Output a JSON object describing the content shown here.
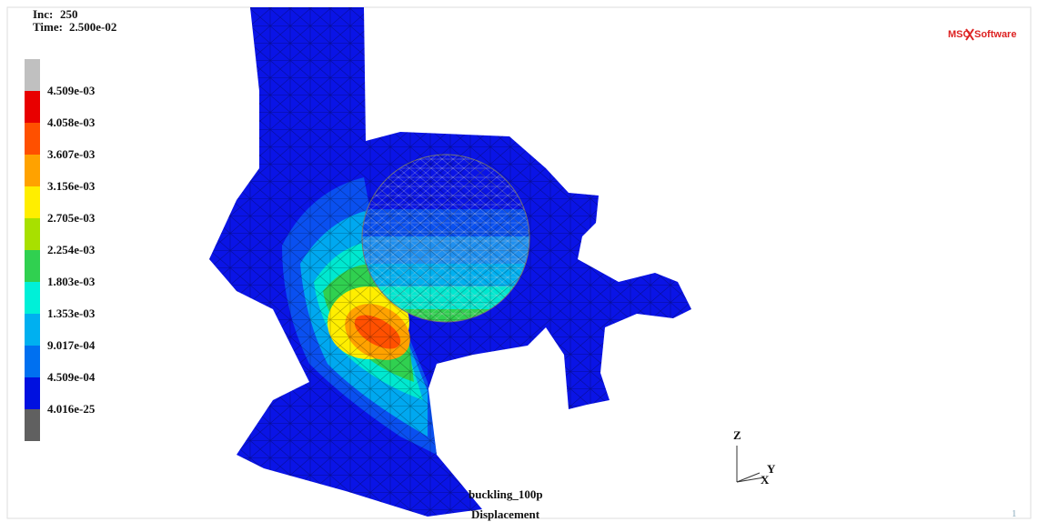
{
  "header": {
    "inc_label": "Inc:",
    "inc": "250",
    "time_label": "Time:",
    "time": "2.500e-02"
  },
  "logo": {
    "left": "MSC",
    "right": "Software"
  },
  "legend": {
    "labels": [
      "4.509e-03",
      "4.058e-03",
      "3.607e-03",
      "3.156e-03",
      "2.705e-03",
      "2.254e-03",
      "1.803e-03",
      "1.353e-03",
      "9.017e-04",
      "4.509e-04",
      "4.016e-25"
    ],
    "colors": [
      "#c0c0c0",
      "#e80000",
      "#ff5000",
      "#ffa200",
      "#ffee00",
      "#a8e000",
      "#30d050",
      "#00f0d8",
      "#00b0f0",
      "#0070f0",
      "#0010e0",
      "#606060"
    ]
  },
  "footer": {
    "model": "buckling_100p",
    "quantity": "Displacement",
    "page": "1"
  },
  "axes": {
    "z": "Z",
    "y": "Y",
    "x": "X"
  }
}
